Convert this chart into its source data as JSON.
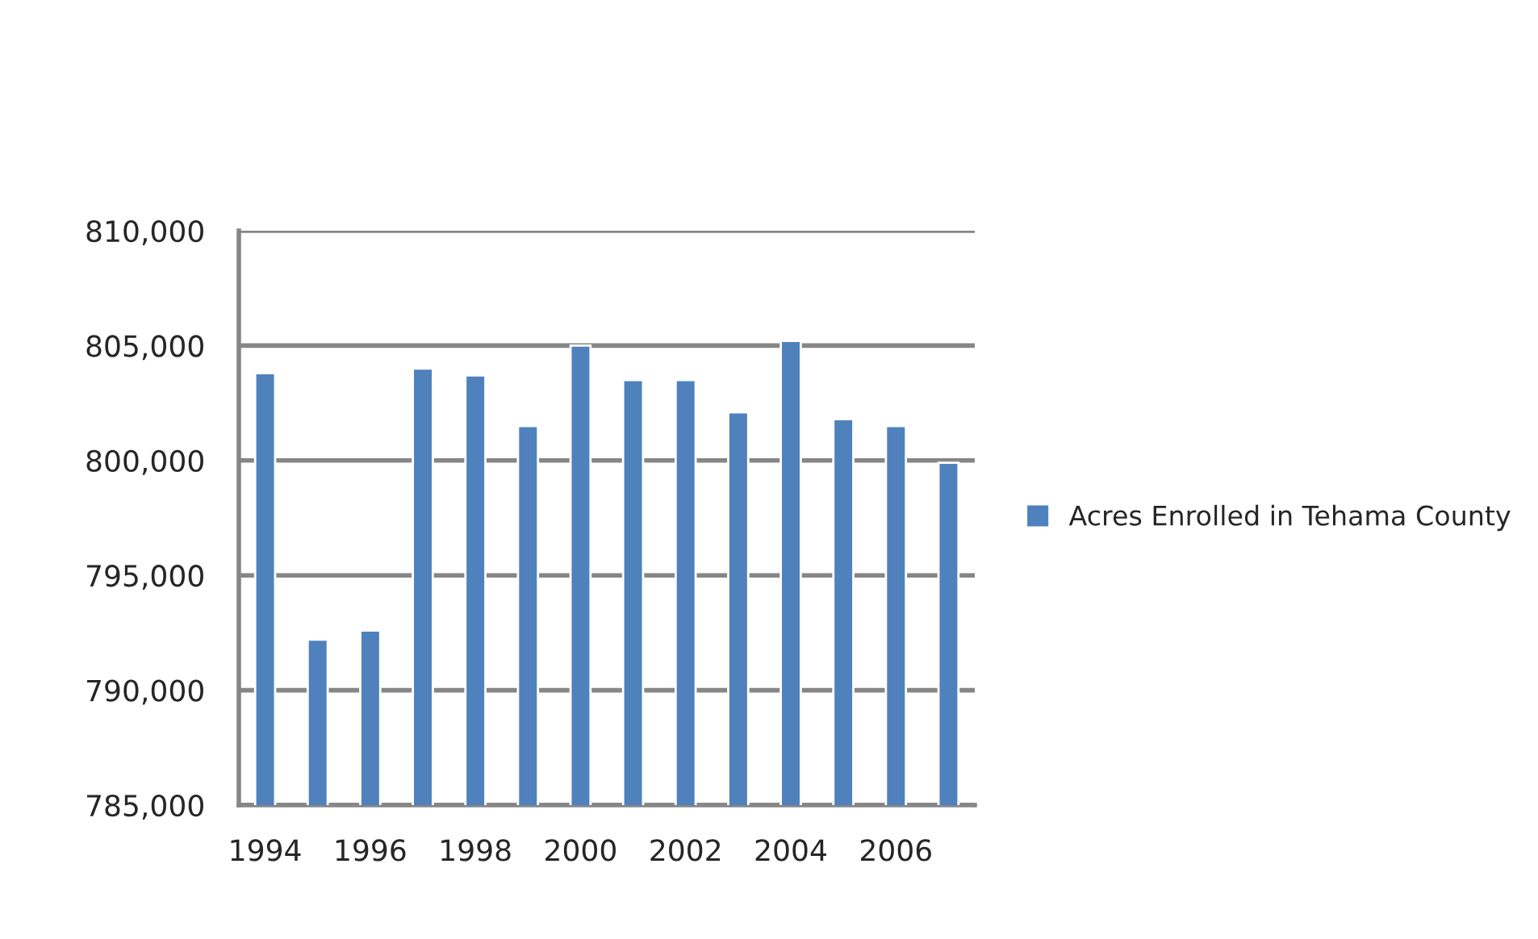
{
  "chart_data": {
    "type": "bar",
    "categories": [
      "1994",
      null,
      "1996",
      null,
      "1998",
      null,
      "2000",
      null,
      "2002",
      null,
      "2004",
      null,
      "2006",
      null
    ],
    "series": [
      {
        "name": "Acres Enrolled in Tehama County",
        "color": "#4f81bd",
        "values": [
          803800,
          792200,
          792600,
          804000,
          803700,
          801500,
          805000,
          803500,
          803500,
          802100,
          805200,
          801800,
          801500,
          799900
        ]
      }
    ],
    "ylim": [
      785000,
      810000
    ],
    "yticks": [
      {
        "value": 785000,
        "label": "785,000"
      },
      {
        "value": 790000,
        "label": "790,000"
      },
      {
        "value": 795000,
        "label": "795,000"
      },
      {
        "value": 800000,
        "label": "800,000"
      },
      {
        "value": 805000,
        "label": "805,000"
      },
      {
        "value": 810000,
        "label": "810,000"
      }
    ],
    "grid": "y",
    "legend": "right"
  }
}
